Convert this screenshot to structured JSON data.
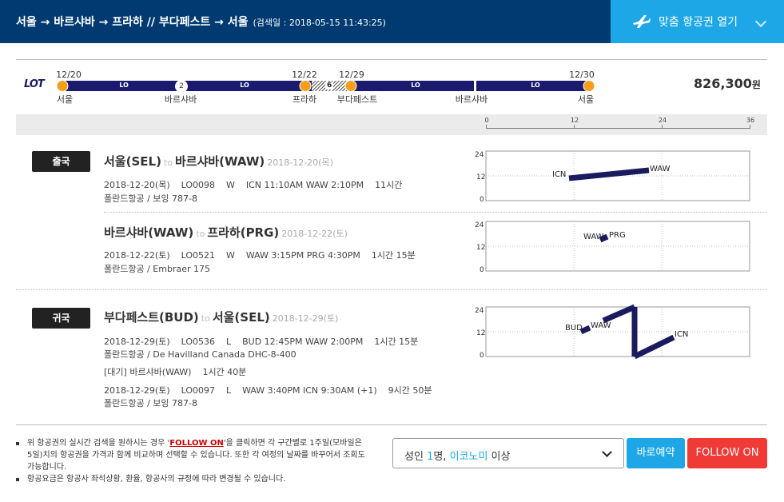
{
  "header": {
    "title": "서울 → 바르샤바 → 프라하 // 부다페스트 → 서울",
    "search_date": "(검색일 : 2018-05-15 11:43:25)",
    "custom_button": "맞춤 항공권 열기",
    "plane_icon": "plane-icon",
    "chevron_icon": "chevron-down-icon"
  },
  "route": {
    "airline_logo": "LOT",
    "segments": [
      {
        "label": "LO"
      },
      {
        "label": "LO"
      },
      {
        "label": "LO"
      },
      {
        "label": "LO"
      }
    ],
    "stops": [
      {
        "date": "12/20",
        "city": "서울"
      },
      {
        "marker": "2",
        "city": "바르샤바"
      },
      {
        "date": "12/22",
        "city": "프라하"
      },
      {
        "gap": "6"
      },
      {
        "date": "12/29",
        "city": "부다페스트"
      },
      {
        "city": "바르샤바"
      },
      {
        "date": "12/30",
        "city": "서울"
      }
    ],
    "price": "826,300",
    "currency": "원"
  },
  "scale": {
    "ticks": [
      "0",
      "12",
      "24",
      "36"
    ]
  },
  "legs": [
    {
      "badge": "출국",
      "from": "서울(SEL)",
      "to_word": "to",
      "to": "바르샤바(WAW)",
      "date": "2018-12-20(목)",
      "detail": "2018-12-20(목)    LO0098    W    ICN 11:10AM WAW 2:10PM    11시간",
      "aircraft": "폴란드항공 / 보잉 787-8"
    },
    {
      "from": "바르샤바(WAW)",
      "to_word": "to",
      "to": "프라하(PRG)",
      "date": "2018-12-22(토)",
      "detail": "2018-12-22(토)    LO0521    W    WAW 3:15PM PRG 4:30PM    1시간 15분",
      "aircraft": "폴란드항공 / Embraer 175"
    },
    {
      "badge": "귀국",
      "from": "부다페스트(BUD)",
      "to_word": "to",
      "to": "서울(SEL)",
      "date": "2018-12-29(토)",
      "detail": "2018-12-29(토)    LO0536    L    BUD 12:45PM WAW 2:00PM    1시간 15분",
      "aircraft": "폴란드항공 / De Havilland Canada DHC-8-400",
      "layover": "[대기] 바르샤바(WAW)    1시간 40분",
      "detail2": "2018-12-29(토)    LO0097    L    WAW 3:40PM ICN 9:30AM (+1)    9시간 50분",
      "aircraft2": "폴란드항공 / 보잉 787-8"
    }
  ],
  "mini_charts": [
    {
      "yticks": [
        "24",
        "12",
        "0"
      ],
      "labels": [
        "ICN",
        "WAW"
      ]
    },
    {
      "yticks": [
        "24",
        "12",
        "0"
      ],
      "labels": [
        "WAW",
        "PRG"
      ]
    },
    {
      "yticks": [
        "24",
        "12",
        "0"
      ],
      "labels": [
        "BUD",
        "WAW",
        "ICN"
      ]
    }
  ],
  "footer": {
    "note1_a": "위 항공권의 실시간 검색을 원하시는 경우 '",
    "note1_follow": "FOLLOW ON",
    "note1_b": "'을 클릭하면 각 구간별로 1주일(모바일은 5일)치의 항공권을 가격과 함께 비교하며 선택할 수 있습니다. 또한 각 여정의 날짜를 바꾸어서 조회도 가능합니다.",
    "note2": "항공요금은 항공사 좌석상황, 환율, 항공사의 규정에 따라 변경될 수 있습니다.",
    "select_a": "성인 ",
    "select_count": "1",
    "select_b": "명, ",
    "select_class": "이코노미",
    "select_c": " 이상",
    "book_button": "바로예약",
    "follow_button": "FOLLOW ON"
  },
  "colors": {
    "header_bg": "#003a70",
    "accent": "#1ea7e6",
    "follow": "#f03a35",
    "route": "#1a1a6e",
    "stop": "#f5a01a"
  }
}
